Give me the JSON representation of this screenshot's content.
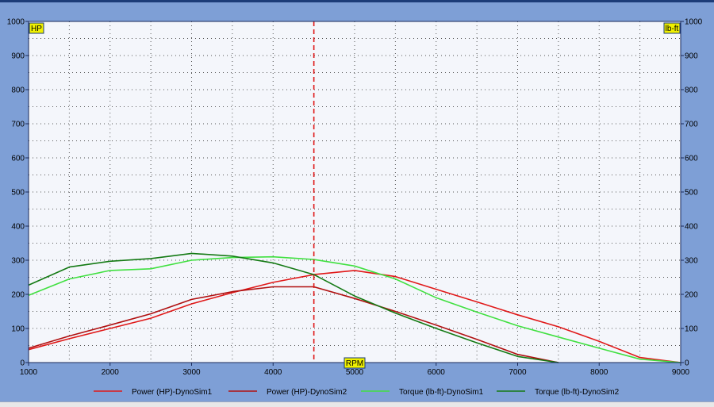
{
  "chart_data": {
    "type": "line",
    "x_unit": "RPM",
    "y_left_unit": "HP",
    "y_right_unit": "lb-ft",
    "xlim": [
      1000,
      9000
    ],
    "ylim": [
      0,
      1000
    ],
    "x_ticks": [
      1000,
      2000,
      3000,
      4000,
      5000,
      6000,
      7000,
      8000,
      9000
    ],
    "y_ticks": [
      0,
      100,
      200,
      300,
      400,
      500,
      600,
      700,
      800,
      900,
      1000
    ],
    "grid": true,
    "cursor_x": 4500,
    "legend_position": "bottom",
    "series": [
      {
        "name": "Power (HP)-DynoSim1",
        "color": "#e01818",
        "x": [
          1000,
          1500,
          2000,
          2500,
          3000,
          3500,
          4000,
          4500,
          5000,
          5500,
          6000,
          6500,
          7000,
          7500,
          8000,
          8500,
          9000
        ],
        "y": [
          38,
          70,
          100,
          130,
          172,
          205,
          235,
          258,
          270,
          252,
          215,
          178,
          140,
          105,
          62,
          15,
          0
        ]
      },
      {
        "name": "Power (HP)-DynoSim2",
        "color": "#b01010",
        "x": [
          1000,
          1500,
          2000,
          2500,
          3000,
          3500,
          4000,
          4500,
          5000,
          5500,
          6000,
          6500,
          7000,
          7500
        ],
        "y": [
          42,
          78,
          110,
          143,
          185,
          208,
          222,
          222,
          188,
          150,
          110,
          68,
          24,
          0
        ]
      },
      {
        "name": "Torque (lb-ft)-DynoSim1",
        "color": "#40e040",
        "x": [
          1000,
          1500,
          2000,
          2500,
          3000,
          3500,
          4000,
          4500,
          5000,
          5500,
          6000,
          6500,
          7000,
          7500,
          8000,
          8500,
          9000
        ],
        "y": [
          197,
          245,
          270,
          275,
          300,
          308,
          310,
          302,
          283,
          245,
          190,
          148,
          108,
          75,
          42,
          10,
          0
        ]
      },
      {
        "name": "Torque (lb-ft)-DynoSim2",
        "color": "#147a14",
        "x": [
          1000,
          1500,
          2000,
          2500,
          3000,
          3500,
          4000,
          4500,
          5000,
          5500,
          6000,
          6500,
          7000,
          7500
        ],
        "y": [
          227,
          280,
          297,
          305,
          320,
          312,
          292,
          258,
          195,
          145,
          100,
          58,
          18,
          0
        ]
      }
    ]
  }
}
